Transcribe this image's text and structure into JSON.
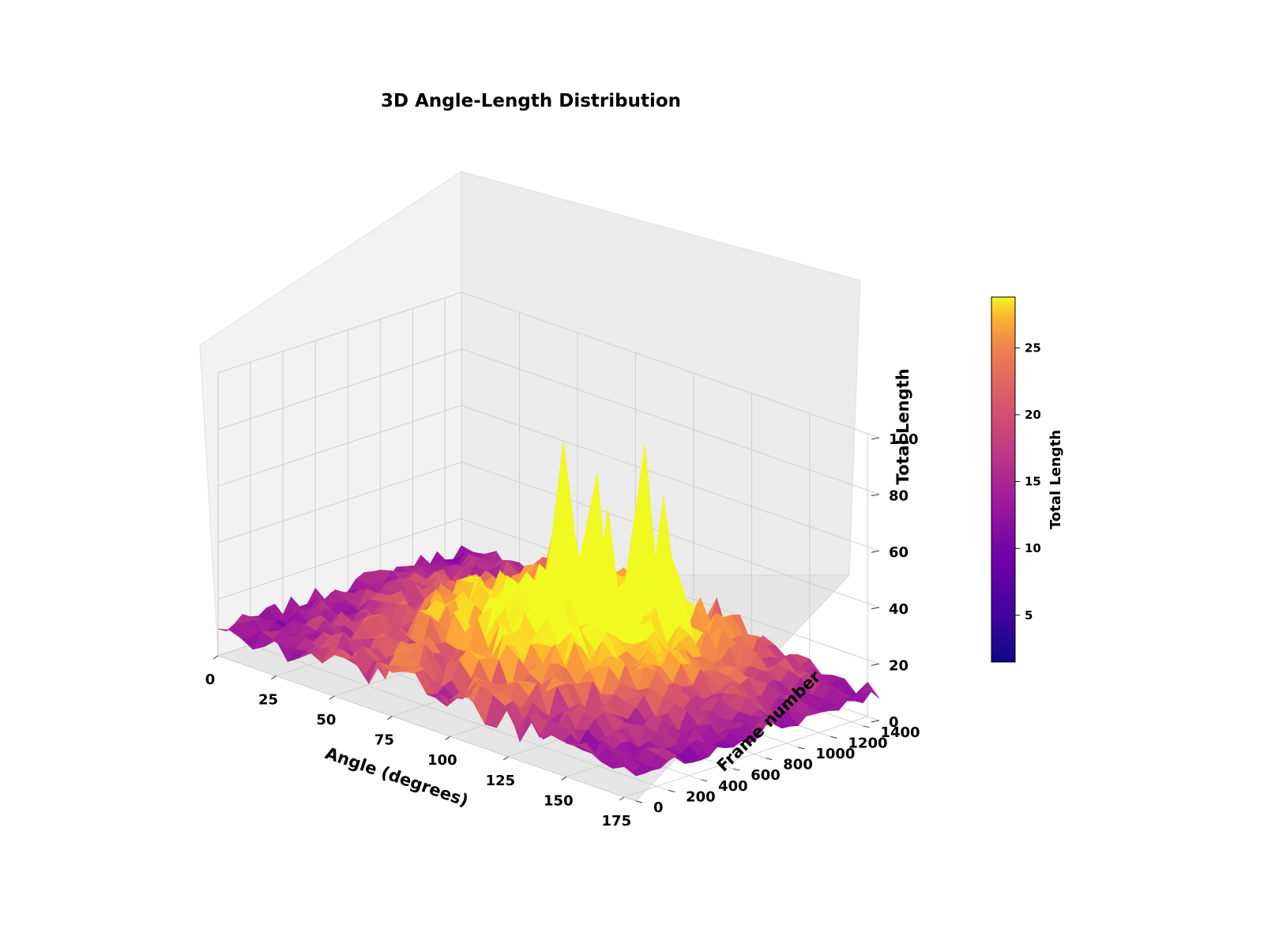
{
  "chart_data": {
    "type": "surface3d",
    "title": "3D Angle-Length Distribution",
    "xlabel": "Angle (degrees)",
    "ylabel": "Frame number",
    "zlabel": "Total Length",
    "x_ticks": [
      "0",
      "25",
      "50",
      "75",
      "100",
      "125",
      "150",
      "175"
    ],
    "y_ticks": [
      "0",
      "200",
      "400",
      "600",
      "800",
      "1000",
      "1200",
      "1400"
    ],
    "z_ticks": [
      "0",
      "20",
      "40",
      "60",
      "80",
      "100"
    ],
    "xlim": [
      0,
      180
    ],
    "ylim": [
      0,
      1500
    ],
    "zlim": [
      0,
      100
    ],
    "colormap": "plasma",
    "colorbar": {
      "label": "Total Length",
      "ticks": [
        "5",
        "10",
        "15",
        "20",
        "25"
      ],
      "tick_values": [
        5,
        10,
        15,
        20,
        25
      ],
      "range": [
        1.5,
        28.8
      ]
    },
    "peaks": [
      {
        "x": 100,
        "y": 1180,
        "z": 97
      },
      {
        "x": 116,
        "y": 1120,
        "z": 82
      },
      {
        "x": 65,
        "y": 1200,
        "z": 70
      },
      {
        "x": 88,
        "y": 1050,
        "z": 68
      },
      {
        "x": 105,
        "y": 900,
        "z": 58
      }
    ],
    "grid": true
  }
}
